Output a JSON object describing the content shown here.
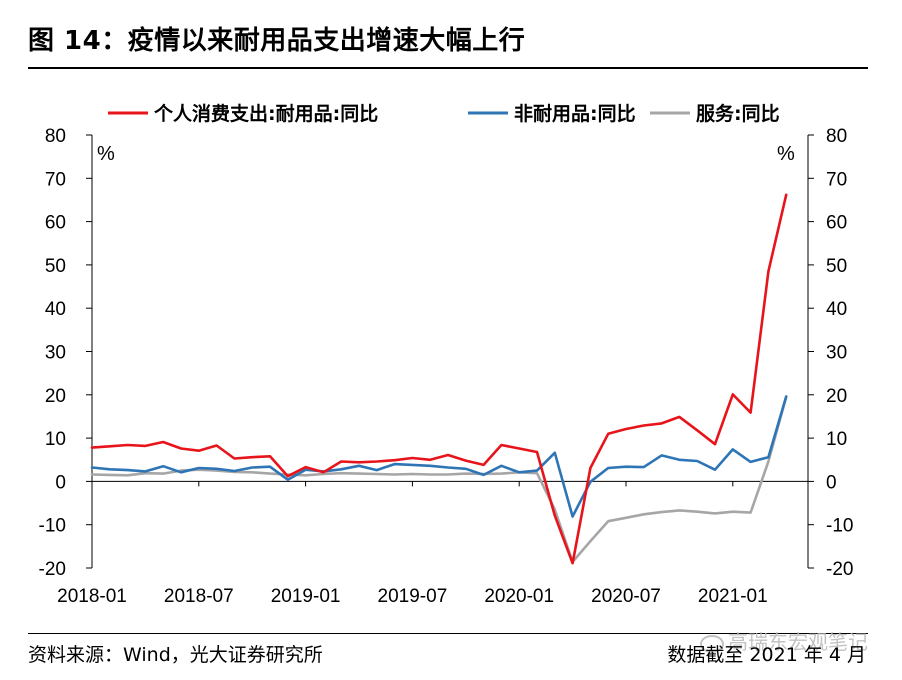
{
  "figure": {
    "title": "图 14：疫情以来耐用品支出增速大幅上行",
    "source": "资料来源：Wind，光大证券研究所",
    "cutoff_note": "数据截至 2021 年 4 月",
    "watermark": "高瑞东宏观笔记"
  },
  "chart_data": {
    "type": "line",
    "title": "",
    "xlabel": "",
    "ylabel": "%",
    "y2label": "%",
    "ylim": [
      -20,
      80
    ],
    "y_ticks": [
      "80",
      "70",
      "60",
      "50",
      "40",
      "30",
      "20",
      "10",
      "0",
      "-10",
      "-20"
    ],
    "x_tick_labels": [
      "2018-01",
      "2018-07",
      "2019-01",
      "2019-07",
      "2020-01",
      "2020-07",
      "2021-01"
    ],
    "legend_position": "top",
    "x": [
      "2018-01",
      "2018-02",
      "2018-03",
      "2018-04",
      "2018-05",
      "2018-06",
      "2018-07",
      "2018-08",
      "2018-09",
      "2018-10",
      "2018-11",
      "2018-12",
      "2019-01",
      "2019-02",
      "2019-03",
      "2019-04",
      "2019-05",
      "2019-06",
      "2019-07",
      "2019-08",
      "2019-09",
      "2019-10",
      "2019-11",
      "2019-12",
      "2020-01",
      "2020-02",
      "2020-03",
      "2020-04",
      "2020-05",
      "2020-06",
      "2020-07",
      "2020-08",
      "2020-09",
      "2020-10",
      "2020-11",
      "2020-12",
      "2021-01",
      "2021-02",
      "2021-03",
      "2021-04"
    ],
    "series": [
      {
        "name": "个人消费支出:耐用品:同比",
        "color": "#e8141b",
        "values": [
          7.8,
          8.1,
          8.4,
          8.2,
          9.1,
          7.6,
          7.1,
          8.3,
          5.3,
          5.6,
          5.8,
          1.2,
          3.3,
          2.1,
          4.6,
          4.4,
          4.6,
          4.9,
          5.4,
          5.0,
          6.1,
          4.8,
          3.8,
          8.4,
          7.6,
          6.8,
          -7.9,
          -18.9,
          3.1,
          11.0,
          12.1,
          12.9,
          13.4,
          14.9,
          11.8,
          8.6,
          20.1,
          15.9,
          48.5,
          66.2
        ]
      },
      {
        "name": "非耐用品:同比",
        "color": "#2e75b6",
        "values": [
          3.2,
          2.8,
          2.6,
          2.3,
          3.5,
          2.1,
          3.1,
          2.9,
          2.4,
          3.2,
          3.4,
          0.4,
          2.7,
          2.3,
          2.8,
          3.6,
          2.6,
          4.0,
          3.8,
          3.6,
          3.2,
          2.9,
          1.5,
          3.6,
          2.1,
          2.5,
          6.6,
          -8.1,
          -0.1,
          3.1,
          3.4,
          3.3,
          6.0,
          5.0,
          4.7,
          2.7,
          7.4,
          4.5,
          5.6,
          19.6
        ]
      },
      {
        "name": "服务:同比",
        "color": "#a6a6a6",
        "values": [
          1.6,
          1.5,
          1.4,
          1.9,
          1.8,
          2.5,
          2.7,
          2.5,
          2.2,
          2.1,
          1.8,
          1.6,
          1.4,
          1.7,
          1.9,
          1.8,
          1.7,
          1.6,
          1.7,
          1.6,
          1.6,
          1.8,
          1.7,
          1.8,
          2.1,
          1.9,
          -6.5,
          -18.6,
          -13.8,
          -9.2,
          -8.4,
          -7.6,
          -7.1,
          -6.7,
          -7.0,
          -7.4,
          -7.0,
          -7.2,
          4.6,
          19.5
        ]
      }
    ]
  }
}
